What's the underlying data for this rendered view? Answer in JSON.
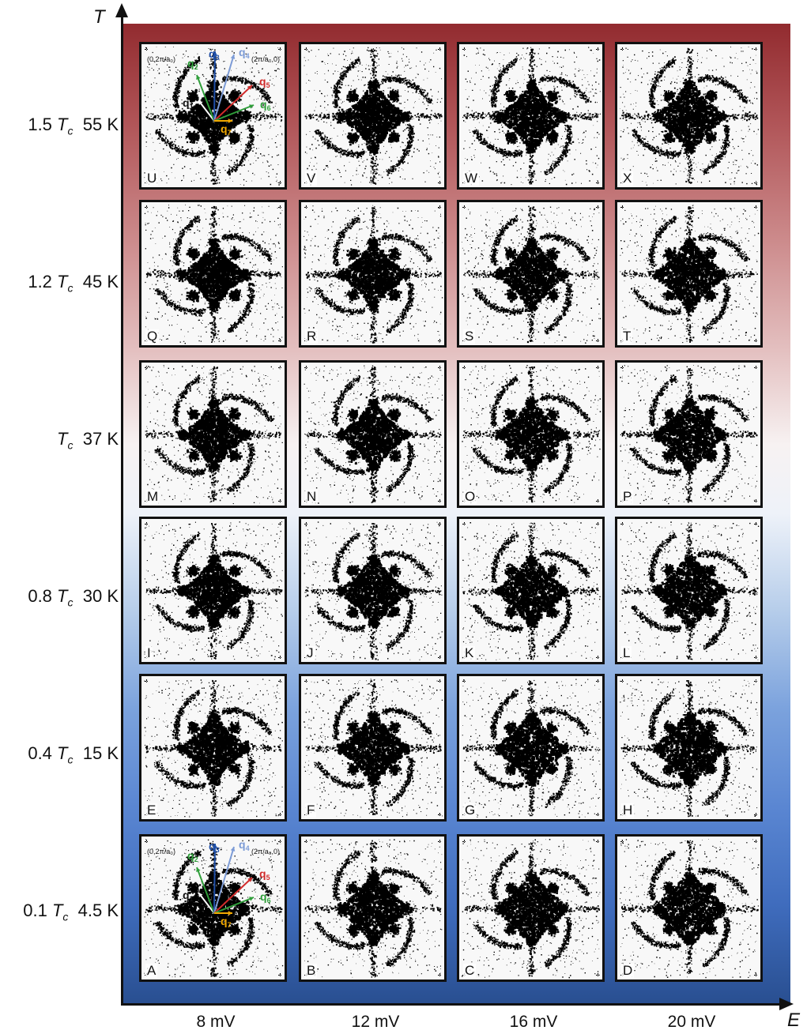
{
  "axes": {
    "y_label": "T",
    "x_label": "E"
  },
  "rows": [
    {
      "factor": "1.5",
      "temp": "55 K"
    },
    {
      "factor": "1.2",
      "temp": "45 K"
    },
    {
      "factor": "",
      "temp": "37 K"
    },
    {
      "factor": "0.8",
      "temp": "30 K"
    },
    {
      "factor": "0.4",
      "temp": "15 K"
    },
    {
      "factor": "0.1",
      "temp": "4.5 K"
    }
  ],
  "tc_symbol": "T",
  "tc_sub": "c",
  "columns": [
    "8 mV",
    "12 mV",
    "16 mV",
    "20 mV"
  ],
  "panel_letters": [
    "U",
    "V",
    "W",
    "X",
    "Q",
    "R",
    "S",
    "T",
    "M",
    "N",
    "O",
    "P",
    "I",
    "J",
    "K",
    "L",
    "E",
    "F",
    "G",
    "H",
    "A",
    "B",
    "C",
    "D"
  ],
  "vector_overlay": {
    "left_point": "(0,2π/a₀)",
    "right_point": "(2π/a₀,0)",
    "vectors": [
      {
        "sub": "1",
        "color": "#ffffff"
      },
      {
        "sub": "2",
        "color": "#2f9e3a"
      },
      {
        "sub": "3",
        "color": "#1f4fa8"
      },
      {
        "sub": "4",
        "color": "#7c9bd6"
      },
      {
        "sub": "5",
        "color": "#d12a2a"
      },
      {
        "sub": "6",
        "color": "#2f9e3a"
      },
      {
        "sub": "7",
        "color": "#f2a900"
      }
    ]
  },
  "colors": {
    "gradient_top": "#922b2f",
    "gradient_mid": "#f7f2f2",
    "gradient_bottom": "#294f91",
    "map_ink": "#000000"
  }
}
